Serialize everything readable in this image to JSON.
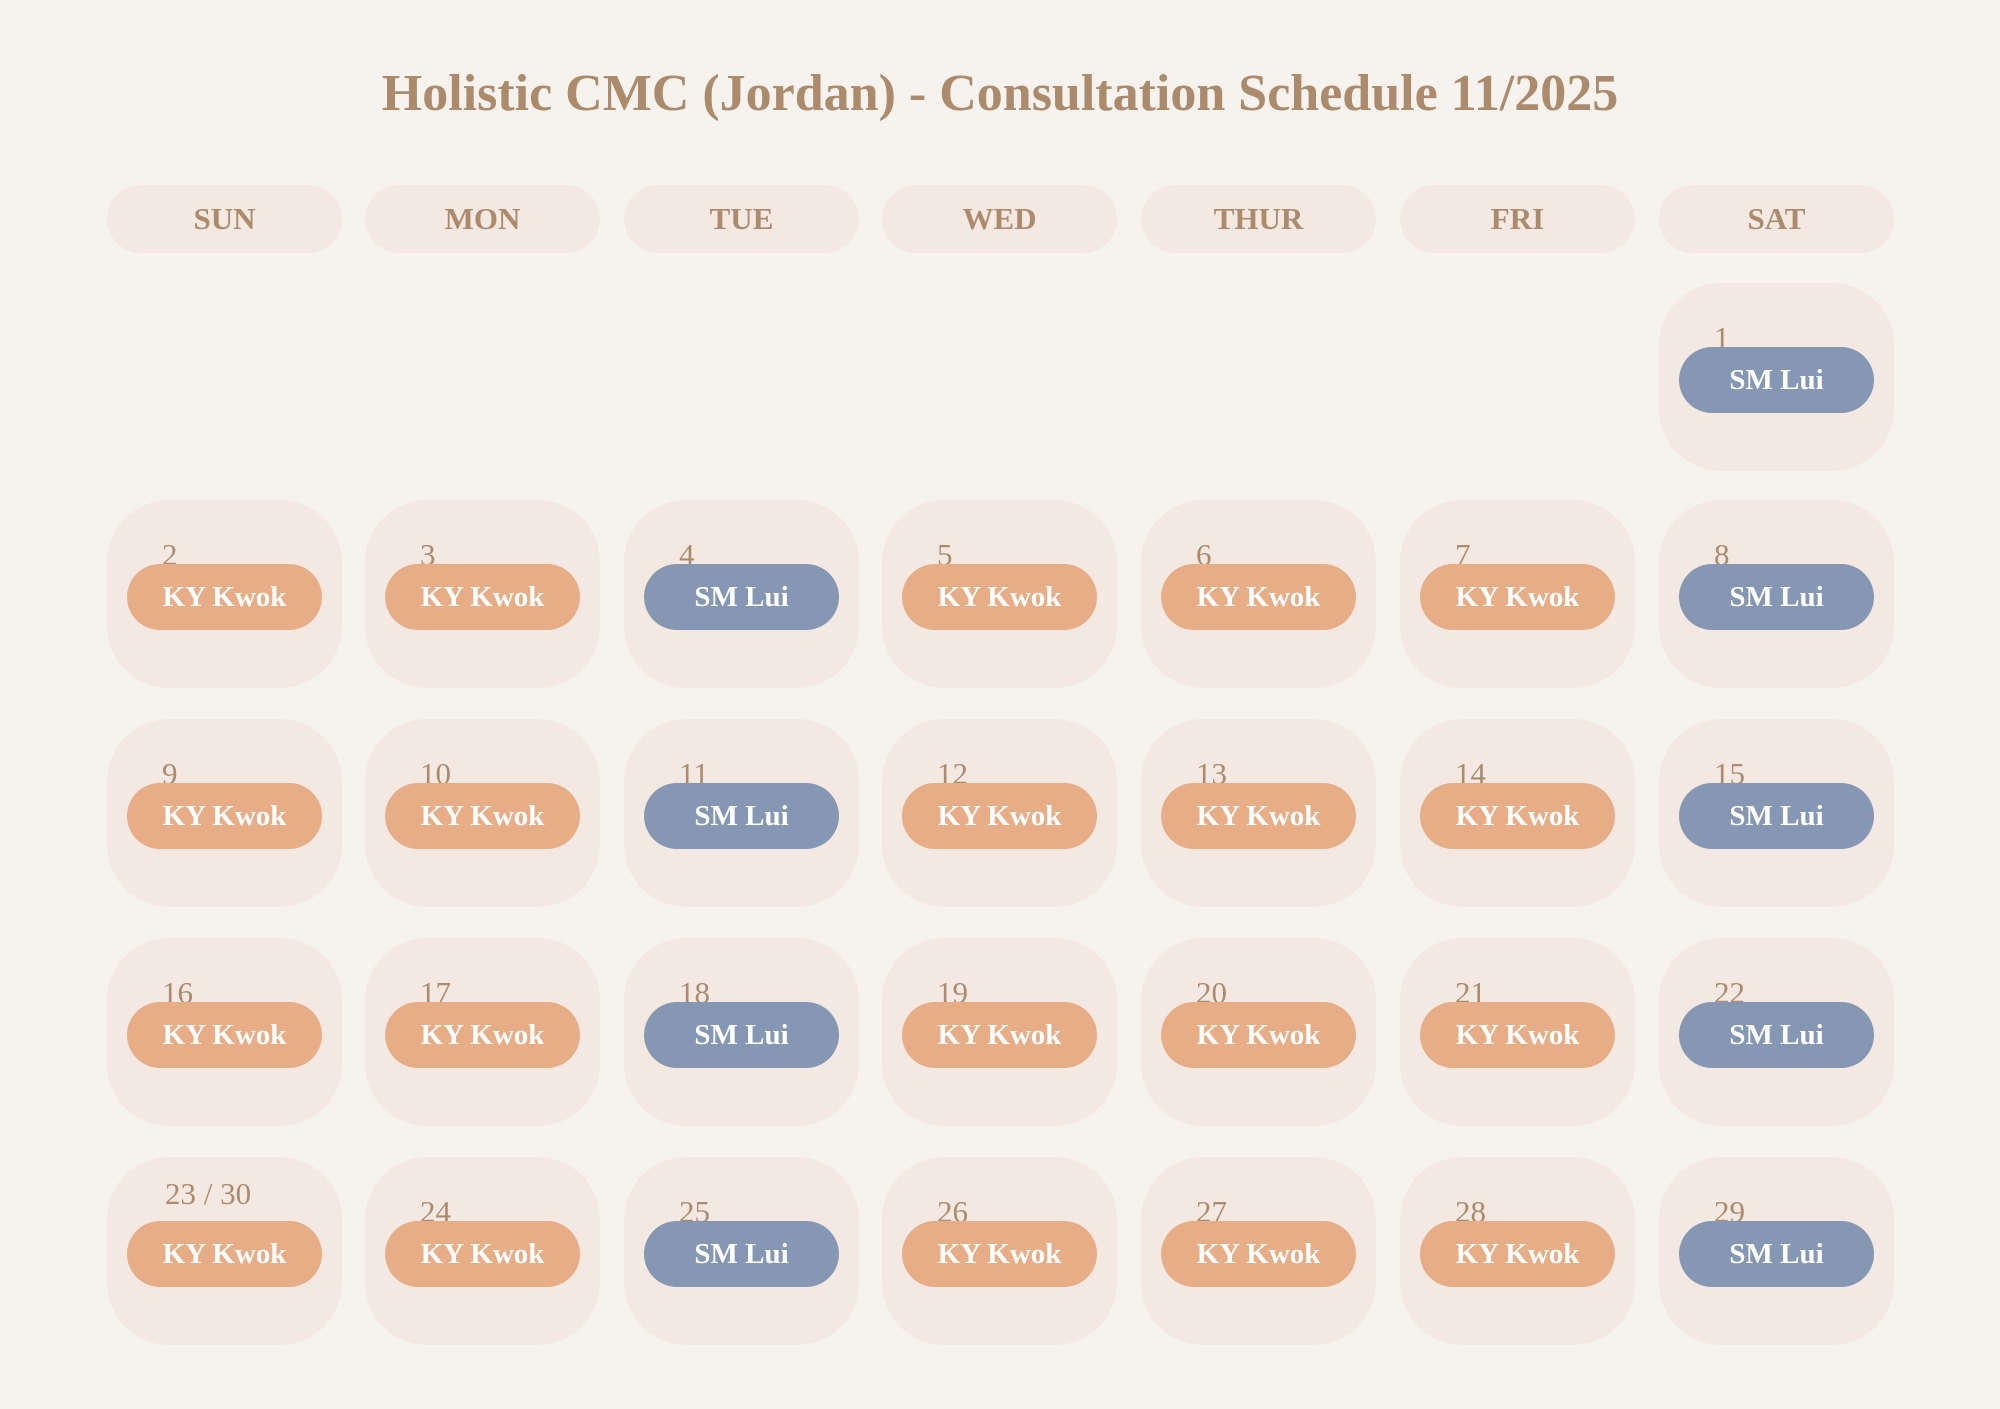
{
  "title": "Holistic CMC (Jordan) - Consultation Schedule 11/2025",
  "colors": {
    "background": "#f6f2ee",
    "cell": "#f4e9e2",
    "text": "#ac8b6d",
    "kwok": "#e6ad87",
    "lui": "#8597b3"
  },
  "days": [
    "SUN",
    "MON",
    "TUE",
    "WED",
    "THUR",
    "FRI",
    "SAT"
  ],
  "weeks": [
    [
      null,
      null,
      null,
      null,
      null,
      null,
      {
        "date": "1",
        "doctor": "SM Lui",
        "kind": "lui"
      }
    ],
    [
      {
        "date": "2",
        "doctor": "KY Kwok",
        "kind": "kwok"
      },
      {
        "date": "3",
        "doctor": "KY Kwok",
        "kind": "kwok"
      },
      {
        "date": "4",
        "doctor": "SM Lui",
        "kind": "lui"
      },
      {
        "date": "5",
        "doctor": "KY Kwok",
        "kind": "kwok"
      },
      {
        "date": "6",
        "doctor": "KY Kwok",
        "kind": "kwok"
      },
      {
        "date": "7",
        "doctor": "KY Kwok",
        "kind": "kwok"
      },
      {
        "date": "8",
        "doctor": "SM Lui",
        "kind": "lui"
      }
    ],
    [
      {
        "date": "9",
        "doctor": "KY Kwok",
        "kind": "kwok"
      },
      {
        "date": "10",
        "doctor": "KY Kwok",
        "kind": "kwok"
      },
      {
        "date": "11",
        "doctor": "SM Lui",
        "kind": "lui"
      },
      {
        "date": "12",
        "doctor": "KY Kwok",
        "kind": "kwok"
      },
      {
        "date": "13",
        "doctor": "KY Kwok",
        "kind": "kwok"
      },
      {
        "date": "14",
        "doctor": "KY Kwok",
        "kind": "kwok"
      },
      {
        "date": "15",
        "doctor": "SM Lui",
        "kind": "lui"
      }
    ],
    [
      {
        "date": "16",
        "doctor": "KY Kwok",
        "kind": "kwok"
      },
      {
        "date": "17",
        "doctor": "KY Kwok",
        "kind": "kwok"
      },
      {
        "date": "18",
        "doctor": "SM Lui",
        "kind": "lui"
      },
      {
        "date": "19",
        "doctor": "KY Kwok",
        "kind": "kwok"
      },
      {
        "date": "20",
        "doctor": "KY Kwok",
        "kind": "kwok"
      },
      {
        "date": "21",
        "doctor": "KY Kwok",
        "kind": "kwok"
      },
      {
        "date": "22",
        "doctor": "SM Lui",
        "kind": "lui"
      }
    ],
    [
      {
        "date": "23 / 30",
        "doctor": "KY Kwok",
        "kind": "kwok"
      },
      {
        "date": "24",
        "doctor": "KY Kwok",
        "kind": "kwok"
      },
      {
        "date": "25",
        "doctor": "SM Lui",
        "kind": "lui"
      },
      {
        "date": "26",
        "doctor": "KY Kwok",
        "kind": "kwok"
      },
      {
        "date": "27",
        "doctor": "KY Kwok",
        "kind": "kwok"
      },
      {
        "date": "28",
        "doctor": "KY Kwok",
        "kind": "kwok"
      },
      {
        "date": "29",
        "doctor": "SM Lui",
        "kind": "lui"
      }
    ]
  ]
}
